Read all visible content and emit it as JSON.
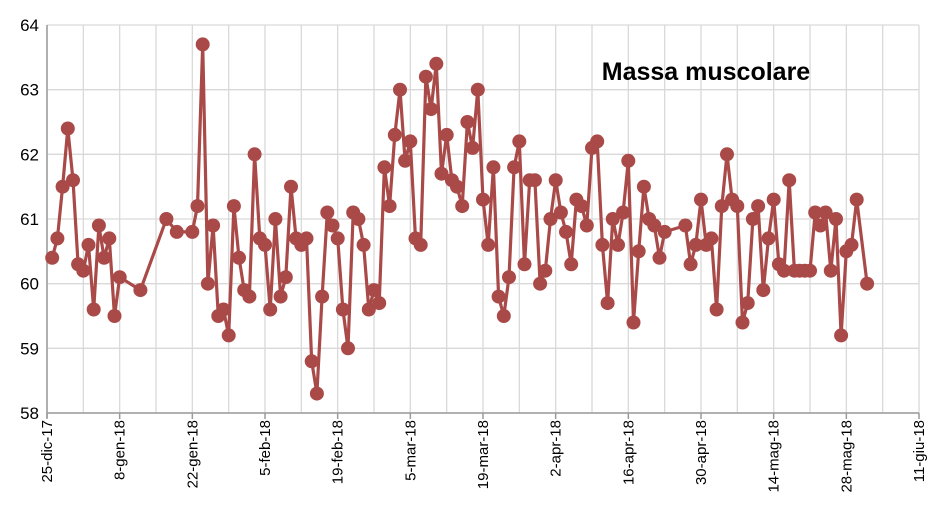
{
  "chart_data": {
    "type": "line",
    "title": "Massa muscolare",
    "xlabel": "",
    "ylabel": "",
    "ylim": [
      58,
      64
    ],
    "xlim": [
      "2017-12-25",
      "2018-06-11"
    ],
    "grid": true,
    "line_color": "#a94a48",
    "y_ticks": [
      "58",
      "59",
      "60",
      "61",
      "62",
      "63",
      "64"
    ],
    "x_ticks": [
      {
        "date": "2017-12-25",
        "label": "25-dic-17"
      },
      {
        "date": "2018-01-08",
        "label": "8-gen-18"
      },
      {
        "date": "2018-01-22",
        "label": "22-gen-18"
      },
      {
        "date": "2018-02-05",
        "label": "5-feb-18"
      },
      {
        "date": "2018-02-19",
        "label": "19-feb-18"
      },
      {
        "date": "2018-03-05",
        "label": "5-mar-18"
      },
      {
        "date": "2018-03-19",
        "label": "19-mar-18"
      },
      {
        "date": "2018-04-02",
        "label": "2-apr-18"
      },
      {
        "date": "2018-04-16",
        "label": "16-apr-18"
      },
      {
        "date": "2018-04-30",
        "label": "30-apr-18"
      },
      {
        "date": "2018-05-14",
        "label": "14-mag-18"
      },
      {
        "date": "2018-05-28",
        "label": "28-mag-18"
      },
      {
        "date": "2018-06-11",
        "label": "11-giu-18"
      }
    ],
    "series": [
      {
        "name": "",
        "points": [
          [
            "2017-12-26",
            60.4
          ],
          [
            "2017-12-27",
            60.7
          ],
          [
            "2017-12-28",
            61.5
          ],
          [
            "2017-12-29",
            62.4
          ],
          [
            "2017-12-30",
            61.6
          ],
          [
            "2017-12-31",
            60.3
          ],
          [
            "2018-01-01",
            60.2
          ],
          [
            "2018-01-02",
            60.6
          ],
          [
            "2018-01-03",
            59.6
          ],
          [
            "2018-01-04",
            60.9
          ],
          [
            "2018-01-05",
            60.4
          ],
          [
            "2018-01-06",
            60.7
          ],
          [
            "2018-01-07",
            59.5
          ],
          [
            "2018-01-08",
            60.1
          ],
          [
            "2018-01-12",
            59.9
          ],
          [
            "2018-01-17",
            61.0
          ],
          [
            "2018-01-19",
            60.8
          ],
          [
            "2018-01-22",
            60.8
          ],
          [
            "2018-01-23",
            61.2
          ],
          [
            "2018-01-24",
            63.7
          ],
          [
            "2018-01-25",
            60.0
          ],
          [
            "2018-01-26",
            60.9
          ],
          [
            "2018-01-27",
            59.5
          ],
          [
            "2018-01-28",
            59.6
          ],
          [
            "2018-01-29",
            59.2
          ],
          [
            "2018-01-30",
            61.2
          ],
          [
            "2018-01-31",
            60.4
          ],
          [
            "2018-02-01",
            59.9
          ],
          [
            "2018-02-02",
            59.8
          ],
          [
            "2018-02-03",
            62.0
          ],
          [
            "2018-02-04",
            60.7
          ],
          [
            "2018-02-05",
            60.6
          ],
          [
            "2018-02-06",
            59.6
          ],
          [
            "2018-02-07",
            61.0
          ],
          [
            "2018-02-08",
            59.8
          ],
          [
            "2018-02-09",
            60.1
          ],
          [
            "2018-02-10",
            61.5
          ],
          [
            "2018-02-11",
            60.7
          ],
          [
            "2018-02-12",
            60.6
          ],
          [
            "2018-02-13",
            60.7
          ],
          [
            "2018-02-14",
            58.8
          ],
          [
            "2018-02-15",
            58.3
          ],
          [
            "2018-02-16",
            59.8
          ],
          [
            "2018-02-17",
            61.1
          ],
          [
            "2018-02-18",
            60.9
          ],
          [
            "2018-02-19",
            60.7
          ],
          [
            "2018-02-20",
            59.6
          ],
          [
            "2018-02-21",
            59.0
          ],
          [
            "2018-02-22",
            61.1
          ],
          [
            "2018-02-23",
            61.0
          ],
          [
            "2018-02-24",
            60.6
          ],
          [
            "2018-02-25",
            59.6
          ],
          [
            "2018-02-26",
            59.9
          ],
          [
            "2018-02-27",
            59.7
          ],
          [
            "2018-02-28",
            61.8
          ],
          [
            "2018-03-01",
            61.2
          ],
          [
            "2018-03-02",
            62.3
          ],
          [
            "2018-03-03",
            63.0
          ],
          [
            "2018-03-04",
            61.9
          ],
          [
            "2018-03-05",
            62.2
          ],
          [
            "2018-03-06",
            60.7
          ],
          [
            "2018-03-07",
            60.6
          ],
          [
            "2018-03-08",
            63.2
          ],
          [
            "2018-03-09",
            62.7
          ],
          [
            "2018-03-10",
            63.4
          ],
          [
            "2018-03-11",
            61.7
          ],
          [
            "2018-03-12",
            62.3
          ],
          [
            "2018-03-13",
            61.6
          ],
          [
            "2018-03-14",
            61.5
          ],
          [
            "2018-03-15",
            61.2
          ],
          [
            "2018-03-16",
            62.5
          ],
          [
            "2018-03-17",
            62.1
          ],
          [
            "2018-03-18",
            63.0
          ],
          [
            "2018-03-19",
            61.3
          ],
          [
            "2018-03-20",
            60.6
          ],
          [
            "2018-03-21",
            61.8
          ],
          [
            "2018-03-22",
            59.8
          ],
          [
            "2018-03-23",
            59.5
          ],
          [
            "2018-03-24",
            60.1
          ],
          [
            "2018-03-25",
            61.8
          ],
          [
            "2018-03-26",
            62.2
          ],
          [
            "2018-03-27",
            60.3
          ],
          [
            "2018-03-28",
            61.6
          ],
          [
            "2018-03-29",
            61.6
          ],
          [
            "2018-03-30",
            60.0
          ],
          [
            "2018-03-31",
            60.2
          ],
          [
            "2018-04-01",
            61.0
          ],
          [
            "2018-04-02",
            61.6
          ],
          [
            "2018-04-03",
            61.1
          ],
          [
            "2018-04-04",
            60.8
          ],
          [
            "2018-04-05",
            60.3
          ],
          [
            "2018-04-06",
            61.3
          ],
          [
            "2018-04-07",
            61.2
          ],
          [
            "2018-04-08",
            60.9
          ],
          [
            "2018-04-09",
            62.1
          ],
          [
            "2018-04-10",
            62.2
          ],
          [
            "2018-04-11",
            60.6
          ],
          [
            "2018-04-12",
            59.7
          ],
          [
            "2018-04-13",
            61.0
          ],
          [
            "2018-04-14",
            60.6
          ],
          [
            "2018-04-15",
            61.1
          ],
          [
            "2018-04-16",
            61.9
          ],
          [
            "2018-04-17",
            59.4
          ],
          [
            "2018-04-18",
            60.5
          ],
          [
            "2018-04-19",
            61.5
          ],
          [
            "2018-04-20",
            61.0
          ],
          [
            "2018-04-21",
            60.9
          ],
          [
            "2018-04-22",
            60.4
          ],
          [
            "2018-04-23",
            60.8
          ],
          [
            "2018-04-27",
            60.9
          ],
          [
            "2018-04-28",
            60.3
          ],
          [
            "2018-04-29",
            60.6
          ],
          [
            "2018-04-30",
            61.3
          ],
          [
            "2018-05-01",
            60.6
          ],
          [
            "2018-05-02",
            60.7
          ],
          [
            "2018-05-03",
            59.6
          ],
          [
            "2018-05-04",
            61.2
          ],
          [
            "2018-05-05",
            62.0
          ],
          [
            "2018-05-06",
            61.3
          ],
          [
            "2018-05-07",
            61.2
          ],
          [
            "2018-05-08",
            59.4
          ],
          [
            "2018-05-09",
            59.7
          ],
          [
            "2018-05-10",
            61.0
          ],
          [
            "2018-05-11",
            61.2
          ],
          [
            "2018-05-12",
            59.9
          ],
          [
            "2018-05-13",
            60.7
          ],
          [
            "2018-05-14",
            61.3
          ],
          [
            "2018-05-15",
            60.3
          ],
          [
            "2018-05-16",
            60.2
          ],
          [
            "2018-05-17",
            61.6
          ],
          [
            "2018-05-18",
            60.2
          ],
          [
            "2018-05-19",
            60.2
          ],
          [
            "2018-05-20",
            60.2
          ],
          [
            "2018-05-21",
            60.2
          ],
          [
            "2018-05-22",
            61.1
          ],
          [
            "2018-05-23",
            60.9
          ],
          [
            "2018-05-24",
            61.1
          ],
          [
            "2018-05-25",
            60.2
          ],
          [
            "2018-05-26",
            61.0
          ],
          [
            "2018-05-27",
            59.2
          ],
          [
            "2018-05-28",
            60.5
          ],
          [
            "2018-05-29",
            60.6
          ],
          [
            "2018-05-30",
            61.3
          ],
          [
            "2018-06-01",
            60.0
          ]
        ]
      }
    ]
  }
}
